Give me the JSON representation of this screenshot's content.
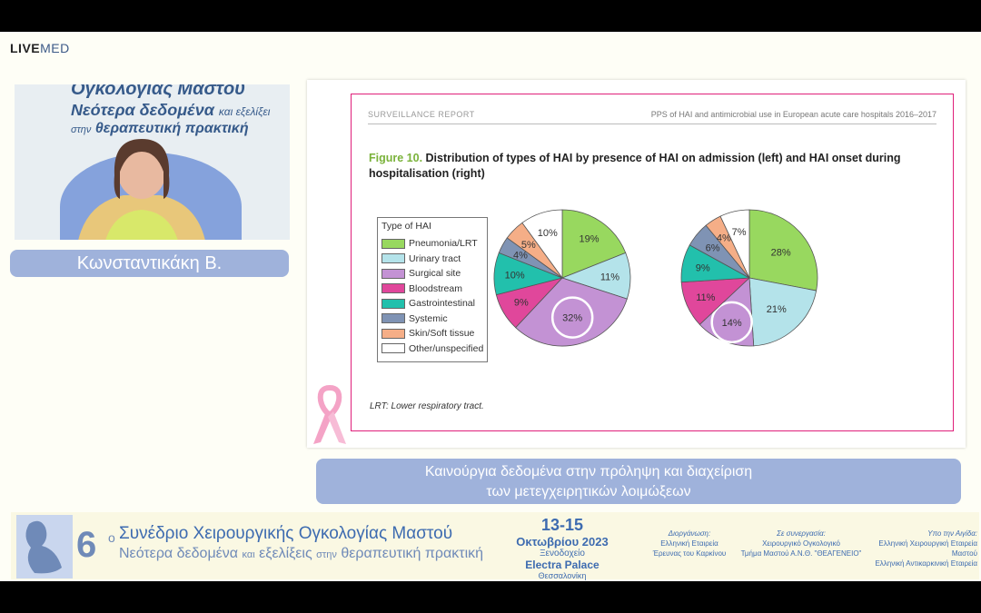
{
  "logo": {
    "live": "LIVE",
    "med": "MED"
  },
  "video": {
    "bg_line1": "Ογκολογίας Μαστού",
    "bg_line2_a": "Νεότερα δεδομένα",
    "bg_line2_b": "και εξελίξει",
    "bg_line3_a": "στην",
    "bg_line3_b": "θεραπευτική πρακτική"
  },
  "speaker": {
    "name": "Κωνσταντικάκη Β."
  },
  "slide": {
    "header_left": "SURVEILLANCE REPORT",
    "header_right": "PPS of HAI and antimicrobial use in European acute care hospitals 2016–2017",
    "figure_label": "Figure 10.",
    "figure_title": "Distribution of types of HAI by presence of HAI on admission (left) and HAI onset during hospitalisation (right)",
    "legend_title": "Type of HAI",
    "legend": [
      {
        "label": "Pneumonia/LRT",
        "color": "#98d85f"
      },
      {
        "label": "Urinary tract",
        "color": "#b4e3ea"
      },
      {
        "label": "Surgical site",
        "color": "#c392d4"
      },
      {
        "label": "Bloodstream",
        "color": "#e0479b"
      },
      {
        "label": "Gastrointestinal",
        "color": "#22c0ac"
      },
      {
        "label": "Systemic",
        "color": "#7f93b4"
      },
      {
        "label": "Skin/Soft tissue",
        "color": "#f5ae87"
      },
      {
        "label": "Other/unspecified",
        "color": "#ffffff"
      }
    ],
    "note": "LRT: Lower respiratory tract."
  },
  "chart_data": [
    {
      "type": "pie",
      "title": "",
      "categories": [
        "Pneumonia/LRT",
        "Urinary tract",
        "Surgical site",
        "Bloodstream",
        "Gastrointestinal",
        "Systemic",
        "Skin/Soft tissue",
        "Other/unspecified"
      ],
      "values": [
        19,
        11,
        32,
        9,
        10,
        4,
        5,
        10
      ],
      "labels": [
        "19%",
        "11%",
        "32%",
        "9%",
        "10%",
        "4%",
        "5%",
        "10%"
      ],
      "highlighted": "32%"
    },
    {
      "type": "pie",
      "title": "",
      "categories": [
        "Pneumonia/LRT",
        "Urinary tract",
        "Surgical site",
        "Bloodstream",
        "Gastrointestinal",
        "Systemic",
        "Skin/Soft tissue",
        "Other/unspecified"
      ],
      "values": [
        28,
        21,
        14,
        11,
        9,
        6,
        4,
        7
      ],
      "labels": [
        "28%",
        "21%",
        "14%",
        "11%",
        "9%",
        "6%",
        "4%",
        "7%"
      ],
      "highlighted": "14%"
    }
  ],
  "caption": {
    "line1": "Καινούργια δεδομένα στην πρόληψη και διαχείριση",
    "line2": "των μετεγχειρητικών λοιμώξεων"
  },
  "banner": {
    "num": "6",
    "sup": "ο",
    "title1": "Συνέδριο Χειρουργικής Ογκολογίας Μαστού",
    "title2_a": "Νεότερα δεδομένα",
    "title2_b": "και",
    "title2_c": "εξελίξεις",
    "title2_d": "στην",
    "title2_e": "θεραπευτική πρακτική",
    "dates": "13-15",
    "month": "Οκτωβρίου 2023",
    "venue_label": "Ξενοδοχείο",
    "venue": "Electra Palace",
    "city": "Θεσσαλονίκη",
    "org1_label": "Διοργάνωση:",
    "org1_l1": "Ελληνική Εταιρεία",
    "org1_l2": "Έρευνας του Καρκίνου",
    "org2_label": "Σε συνεργασία:",
    "org2_l1": "Χειρουργικό Ογκολογικό",
    "org2_l2": "Τμήμα Μαστού Α.Ν.Θ. \"ΘΕΑΓΕΝΕΙΟ\"",
    "org3_label": "Υπο την Αιγίδα:",
    "org3_l1": "Ελληνική Χειρουργική Εταιρεία Μαστού",
    "org3_l2": "Ελληνική Αντικαρκινική Εταιρεία"
  }
}
